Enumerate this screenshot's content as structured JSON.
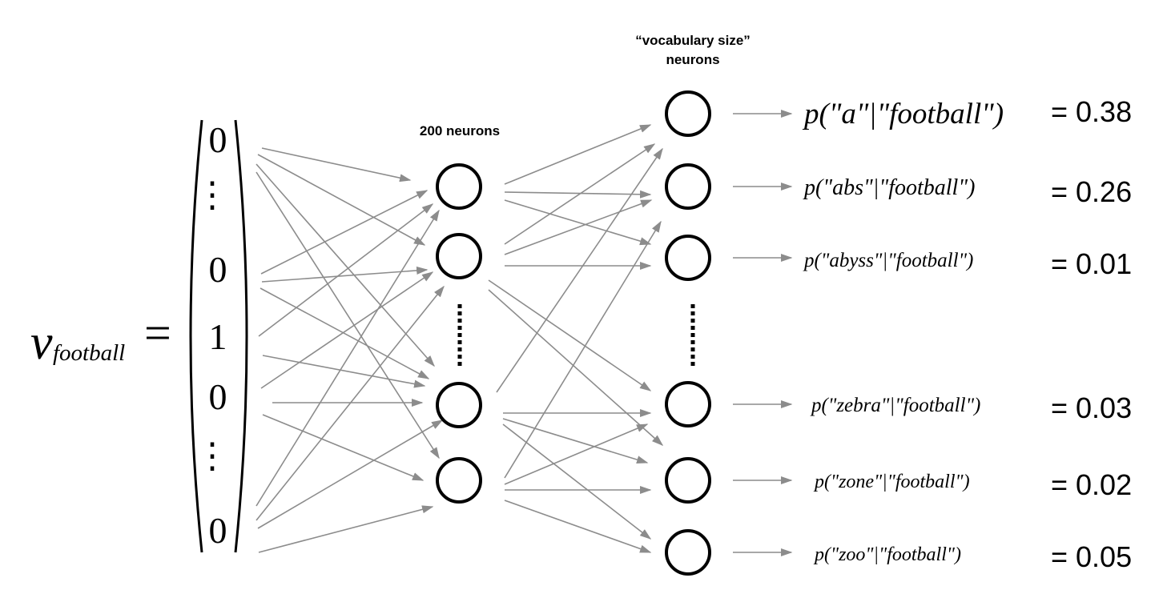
{
  "vector": {
    "symbol": "v",
    "subscript": "football",
    "equals": "=",
    "entries": [
      "0",
      "⋮",
      "0",
      "1",
      "0",
      "⋮",
      "0"
    ]
  },
  "hidden_layer": {
    "label": "200 neurons"
  },
  "output_layer": {
    "label_line1": "“vocabulary size”",
    "label_line2": "neurons"
  },
  "outputs": [
    {
      "prob_pre": "p(\"",
      "word": "a",
      "prob_mid": "\"|\"",
      "context": "football",
      "prob_post": "\")",
      "value": "= 0.38"
    },
    {
      "prob_pre": "p(\"",
      "word": "abs",
      "prob_mid": "\"|\"",
      "context": "football",
      "prob_post": "\")",
      "value": "= 0.26"
    },
    {
      "prob_pre": "p(\"",
      "word": "abyss",
      "prob_mid": "\"|\"",
      "context": "football",
      "prob_post": "\")",
      "value": "= 0.01"
    },
    {
      "prob_pre": "p(\"",
      "word": "zebra",
      "prob_mid": "\"|\"",
      "context": "football",
      "prob_post": "\")",
      "value": "= 0.03"
    },
    {
      "prob_pre": "p(\"",
      "word": "zone",
      "prob_mid": "\"|\"",
      "context": "football",
      "prob_post": "\")",
      "value": "= 0.02"
    },
    {
      "prob_pre": "p(\"",
      "word": "zoo",
      "prob_mid": "\"|\"",
      "context": "football",
      "prob_post": "\")",
      "value": "= 0.05"
    }
  ],
  "colors": {
    "edge": "#8c8c8c",
    "neuron": "#000000",
    "text": "#000000"
  }
}
